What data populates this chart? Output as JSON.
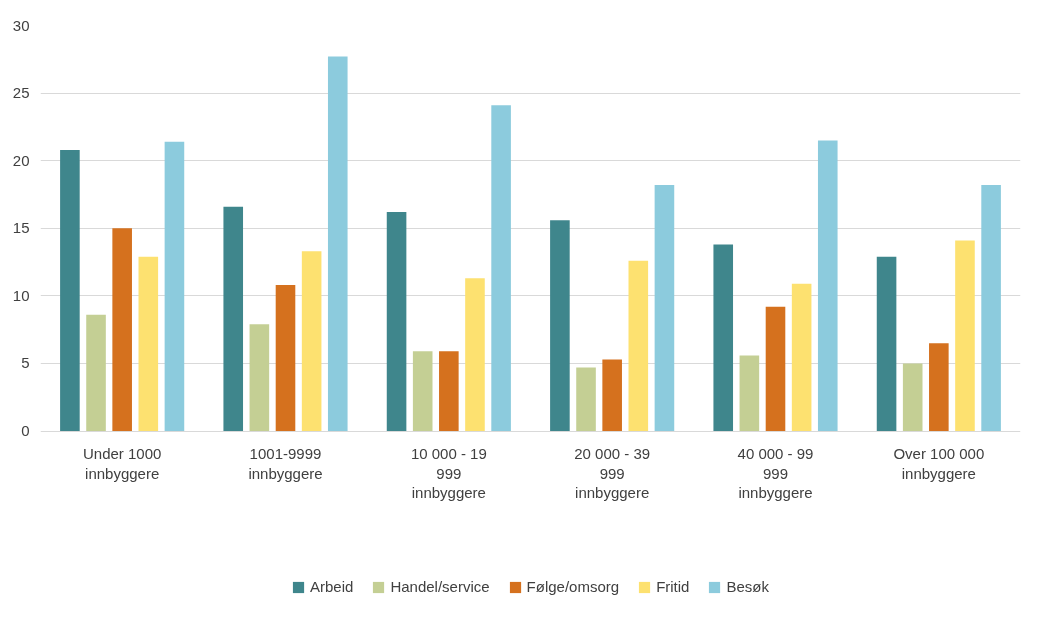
{
  "chart_data": {
    "type": "bar",
    "categories": [
      "Under 1000 innbyggere",
      "1001-9999 innbyggere",
      "10 000 - 19 999 innbyggere",
      "20 000 - 39 999 innbyggere",
      "40 000 - 99 999 innbyggere",
      "Over 100 000 innbyggere"
    ],
    "series": [
      {
        "name": "Arbeid",
        "color": "#3f868c",
        "values": [
          20.8,
          16.6,
          16.2,
          15.6,
          13.8,
          12.9
        ]
      },
      {
        "name": "Handel/service",
        "color": "#c4cf94",
        "values": [
          8.6,
          7.9,
          5.9,
          4.7,
          5.6,
          5.0
        ]
      },
      {
        "name": "Følge/omsorg",
        "color": "#d5711e",
        "values": [
          15.0,
          10.8,
          5.9,
          5.3,
          9.2,
          6.5
        ]
      },
      {
        "name": "Fritid",
        "color": "#fde170",
        "values": [
          12.9,
          13.3,
          11.3,
          12.6,
          10.9,
          14.1
        ]
      },
      {
        "name": "Besøk",
        "color": "#8ccbdd",
        "values": [
          21.4,
          27.7,
          24.1,
          18.2,
          21.5,
          18.2
        ]
      }
    ],
    "ylim": [
      0,
      30
    ],
    "yticks": [
      0,
      5,
      10,
      15,
      20,
      25,
      30
    ],
    "grid": "y",
    "legend": "bottom"
  }
}
